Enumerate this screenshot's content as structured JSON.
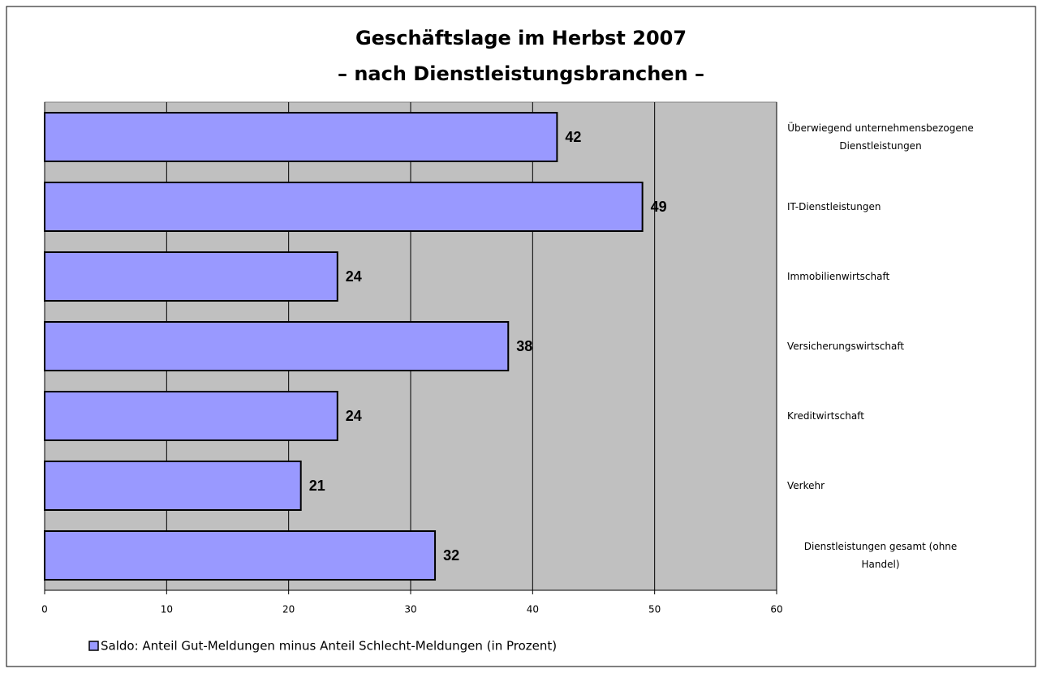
{
  "chart_data": {
    "type": "bar",
    "orientation": "horizontal",
    "title": [
      "Geschäftslage im Herbst 2007",
      "– nach Dienstleistungsbranchen –"
    ],
    "categories": [
      "Überwiegend unternehmensbezogene Dienstleistungen",
      "IT-Dienstleistungen",
      "Immobilienwirtschaft",
      "Versicherungswirtschaft",
      "Kreditwirtschaft",
      "Verkehr",
      "Dienstleistungen gesamt (ohne Handel)"
    ],
    "series": [
      {
        "name": "Saldo: Anteil Gut-Meldungen minus Anteil Schlecht-Meldungen (in Prozent)",
        "color": "#9999ff",
        "values": [
          42,
          49,
          24,
          38,
          24,
          21,
          32
        ]
      }
    ],
    "xlim": [
      0,
      60
    ],
    "xticks": [
      0,
      10,
      20,
      30,
      40,
      50,
      60
    ],
    "grid": true,
    "legend": "bottom"
  }
}
